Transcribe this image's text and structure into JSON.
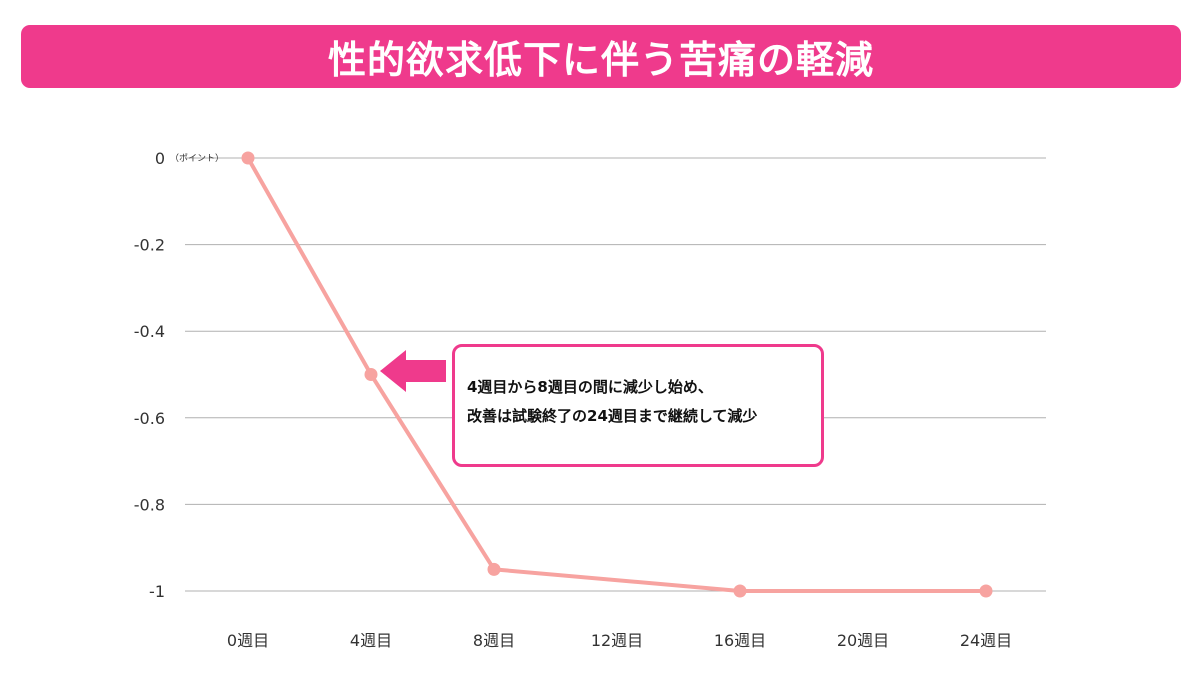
{
  "header": {
    "title": "性的欲求低下に伴う苦痛の軽減"
  },
  "annotation": {
    "line1": "4週目から8週目の間に減少し始め、",
    "line2": "改善は試験終了の24週目まで継続して減少"
  },
  "colors": {
    "banner": "#ef3a8c",
    "series": "#f7a3a0",
    "grid": "#b0b0b0",
    "axis_text": "#333333",
    "callout_border": "#ef3a8c",
    "arrow": "#ef3a8c"
  },
  "chart_data": {
    "type": "line",
    "title": "性的欲求低下に伴う苦痛の軽減",
    "ylabel_unit": "（ポイント）",
    "categories": [
      "0週目",
      "4週目",
      "8週目",
      "12週目",
      "16週目",
      "20週目",
      "24週目"
    ],
    "x_weeks": [
      0,
      4,
      8,
      12,
      16,
      20,
      24
    ],
    "yticks": [
      "0",
      "-0.2",
      "-0.4",
      "-0.6",
      "-0.8",
      "-1"
    ],
    "ytick_values": [
      0,
      -0.2,
      -0.4,
      -0.6,
      -0.8,
      -1
    ],
    "ylim": [
      -1,
      0
    ],
    "grid": true,
    "series": [
      {
        "x": [
          0,
          4,
          8,
          16,
          24
        ],
        "values": [
          0,
          -0.5,
          -0.95,
          -1.0,
          -1.0
        ]
      }
    ]
  }
}
